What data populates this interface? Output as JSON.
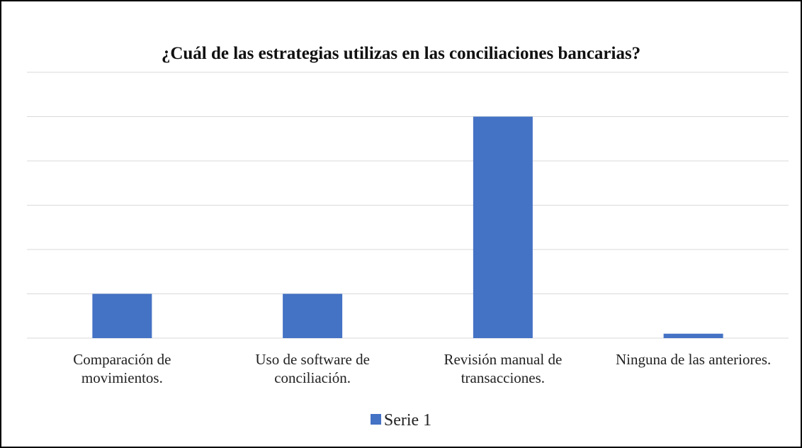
{
  "chart_data": {
    "type": "bar",
    "title": "¿Cuál de las estrategias utilizas en las conciliaciones bancarias?",
    "categories": [
      "Comparación de movimientos.",
      "Uso de software de conciliación.",
      "Revisión manual de transacciones.",
      "Ninguna de las anteriores."
    ],
    "series": [
      {
        "name": "Serie 1",
        "color": "#4472c4",
        "values": [
          1,
          1,
          5,
          0.1
        ]
      }
    ],
    "ylim": [
      0,
      6
    ],
    "yticks": [
      0,
      1,
      2,
      3,
      4,
      5,
      6
    ],
    "grid": true,
    "legend": "bottom"
  }
}
